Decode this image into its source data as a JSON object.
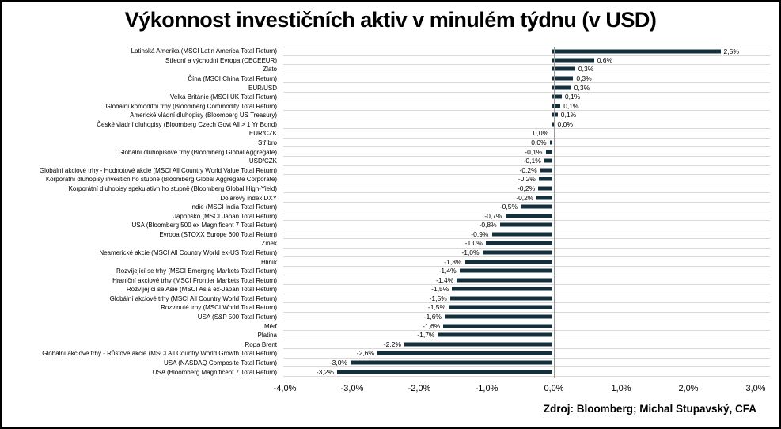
{
  "chart_data": {
    "type": "bar",
    "orientation": "horizontal",
    "title": "Výkonnost investičních aktiv v minulém týdnu (v USD)",
    "source": "Zdroj: Bloomberg; Michal Stupavský, CFA",
    "bar_color": "#14303c",
    "gridline_color": "#d9d9d9",
    "axis_line_color": "#9b9b9b",
    "x_axis": {
      "ticks": [
        "-4,0%",
        "-3,0%",
        "-2,0%",
        "-1,0%",
        "0,0%",
        "1,0%",
        "2,0%",
        "3,0%"
      ],
      "tick_values": [
        -4,
        -3,
        -2,
        -1,
        0,
        1,
        2,
        3
      ],
      "min": -4.0,
      "max": 3.24,
      "unit": "percent"
    },
    "grid": "category-separators-horizontal",
    "legend_position": "none",
    "items": [
      {
        "label": "Latinská Amerika (MSCI Latin America Total Return)",
        "value": 2.5,
        "display": "2,5%"
      },
      {
        "label": "Střední a východní Evropa (CECEEUR)",
        "value": 0.62,
        "display": "0,6%"
      },
      {
        "label": "Zlato",
        "value": 0.34,
        "display": "0,3%"
      },
      {
        "label": "Čína (MSCI China Total Return)",
        "value": 0.31,
        "display": "0,3%"
      },
      {
        "label": "EUR/USD",
        "value": 0.28,
        "display": "0,3%"
      },
      {
        "label": "Velká Británie (MSCI UK Total Return)",
        "value": 0.14,
        "display": "0,1%"
      },
      {
        "label": "Globální komoditní trhy (Bloomberg Commodity Total Return)",
        "value": 0.12,
        "display": "0,1%"
      },
      {
        "label": "Americké vládní dluhopisy (Bloomberg US Treasury)",
        "value": 0.08,
        "display": "0,1%"
      },
      {
        "label": "České vládní dluhopisy (Bloomberg Czech Govt All > 1 Yr Bond)",
        "value": 0.03,
        "display": "0,0%"
      },
      {
        "label": "EUR/CZK",
        "value": -0.01,
        "display": "0,0%"
      },
      {
        "label": "Stříbro",
        "value": -0.04,
        "display": "0,0%"
      },
      {
        "label": "Globální dluhopisové trhy (Bloomberg Global Aggregate)",
        "value": -0.1,
        "display": "-0,1%"
      },
      {
        "label": "USD/CZK",
        "value": -0.12,
        "display": "-0,1%"
      },
      {
        "label": "Globální akciové trhy - Hodnotové akcie (MSCI All Country World Value Total Return)",
        "value": -0.18,
        "display": "-0,2%"
      },
      {
        "label": "Korporátní dluhopisy investičního stupně (Bloomberg Global Aggregate Corporate)",
        "value": -0.2,
        "display": "-0,2%"
      },
      {
        "label": "Korporátní dluhopisy spekulativního stupně (Bloomberg Global High-Yield)",
        "value": -0.21,
        "display": "-0,2%"
      },
      {
        "label": "Dolarový index DXY",
        "value": -0.23,
        "display": "-0,2%"
      },
      {
        "label": "Indie (MSCI India Total Return)",
        "value": -0.47,
        "display": "-0,5%"
      },
      {
        "label": "Japonsko (MSCI Japan Total Return)",
        "value": -0.7,
        "display": "-0,7%"
      },
      {
        "label": "USA (Bloomberg 500 ex Magnificent 7 Total Return)",
        "value": -0.78,
        "display": "-0,8%"
      },
      {
        "label": "Evropa (STOXX Europe 600 Total Return)",
        "value": -0.9,
        "display": "-0,9%"
      },
      {
        "label": "Zinek",
        "value": -0.99,
        "display": "-1,0%"
      },
      {
        "label": "Neamerické akcie (MSCI All Country World ex-US Total Return)",
        "value": -1.04,
        "display": "-1,0%"
      },
      {
        "label": "Hliník",
        "value": -1.3,
        "display": "-1,3%"
      },
      {
        "label": "Rozvíjející se trhy (MSCI Emerging Markets Total Return)",
        "value": -1.38,
        "display": "-1,4%"
      },
      {
        "label": "Hraniční akciové trhy (MSCI Frontier Markets Total Return)",
        "value": -1.42,
        "display": "-1,4%"
      },
      {
        "label": "Rozvíjející se Asie (MSCI Asia ex-Japan Total Return)",
        "value": -1.49,
        "display": "-1,5%"
      },
      {
        "label": "Globální akciové trhy (MSCI All Country World Total Return)",
        "value": -1.52,
        "display": "-1,5%"
      },
      {
        "label": "Rozvinuté trhy (MSCI World Total Return)",
        "value": -1.54,
        "display": "-1,5%"
      },
      {
        "label": "USA (S&P 500 Total Return)",
        "value": -1.6,
        "display": "-1,6%"
      },
      {
        "label": "Měď",
        "value": -1.62,
        "display": "-1,6%"
      },
      {
        "label": "Platina",
        "value": -1.7,
        "display": "-1,7%"
      },
      {
        "label": "Ropa Brent",
        "value": -2.2,
        "display": "-2,2%"
      },
      {
        "label": "Globální akciové trhy - Růstové akcie (MSCI All Country World Growth Total Return)",
        "value": -2.6,
        "display": "-2,6%"
      },
      {
        "label": "USA (NASDAQ Composite Total Return)",
        "value": -3.0,
        "display": "-3,0%"
      },
      {
        "label": "USA (Bloomberg Magnificent 7 Total Return)",
        "value": -3.2,
        "display": "-3,2%"
      }
    ]
  }
}
